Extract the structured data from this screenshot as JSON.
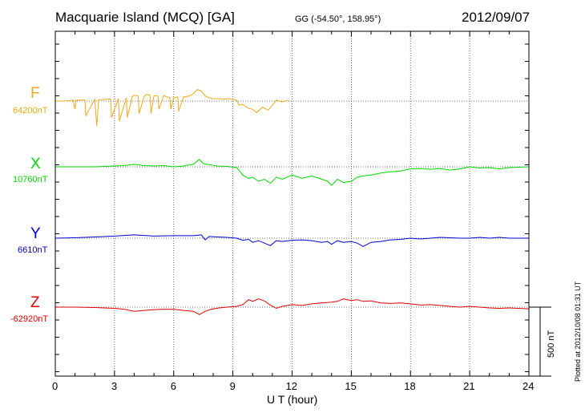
{
  "header": {
    "station": "Macquarie Island (MCQ)  [GA]",
    "coords": "GG (-54.50°, 158.95°)",
    "date": "2012/09/07"
  },
  "footer": {
    "plotted": "Plotted at 2012/10/08 01:31 UT",
    "scale_label": "500 nT"
  },
  "chart_data": {
    "type": "line",
    "title": "Macquarie Island (MCQ)  [GA]",
    "xlabel": "U T (hour)",
    "ylabel": "",
    "xlim": [
      0,
      24
    ],
    "x_ticks": [
      "0",
      "3",
      "6",
      "9",
      "12",
      "15",
      "18",
      "21",
      "24"
    ],
    "grid": true,
    "scale_bar_nT": 500,
    "series": [
      {
        "name": "F",
        "baseline_label": "64200nT",
        "color": "#f0a818",
        "x": [
          0,
          0.5,
          0.9,
          1.0,
          1.05,
          1.5,
          1.55,
          2.0,
          2.1,
          2.2,
          2.5,
          2.8,
          2.85,
          3.2,
          3.25,
          3.6,
          3.65,
          3.9,
          4.0,
          4.2,
          4.25,
          4.5,
          4.6,
          4.8,
          4.85,
          5.0,
          5.2,
          5.25,
          5.5,
          5.6,
          5.8,
          5.85,
          6.0,
          6.2,
          6.25,
          6.5,
          6.8,
          7.0,
          7.2,
          7.4,
          7.6,
          7.8,
          8.0,
          8.2,
          8.5,
          8.8,
          9.0,
          9.2,
          9.3,
          9.5,
          9.8,
          10.0,
          10.2,
          10.5,
          10.8,
          11.0,
          11.2,
          11.5,
          11.8
        ],
        "values": [
          0,
          0,
          2,
          -20,
          2,
          3,
          -35,
          4,
          -60,
          3,
          4,
          5,
          -40,
          6,
          -48,
          8,
          -40,
          10,
          14,
          12,
          -30,
          11,
          16,
          14,
          -30,
          13,
          12,
          -20,
          14,
          10,
          9,
          -20,
          8,
          10,
          -25,
          10,
          12,
          18,
          28,
          24,
          12,
          8,
          5,
          6,
          4,
          6,
          4,
          2,
          -10,
          -8,
          -18,
          -20,
          -28,
          -15,
          -22,
          -10,
          2,
          -2,
          2
        ]
      },
      {
        "name": "X",
        "baseline_label": "10760nT",
        "color": "#00d800",
        "x": [
          0,
          1,
          2,
          3,
          3.5,
          4.0,
          4.5,
          5.0,
          5.5,
          6.0,
          6.5,
          7.0,
          7.3,
          7.5,
          7.8,
          8.2,
          8.7,
          9.2,
          9.5,
          9.8,
          10.0,
          10.3,
          10.6,
          10.9,
          11.2,
          11.5,
          12.0,
          12.5,
          13.0,
          13.5,
          13.8,
          14.0,
          14.3,
          14.6,
          15.0,
          15.3,
          15.6,
          16.0,
          16.5,
          17.0,
          17.5,
          18.0,
          18.5,
          19.0,
          19.5,
          20.0,
          20.5,
          21.0,
          21.5,
          22.0,
          22.5,
          23.0,
          24.0
        ],
        "values": [
          0,
          0,
          0,
          2,
          3,
          6,
          3,
          2,
          3,
          0,
          2,
          6,
          18,
          8,
          5,
          2,
          1,
          -2,
          -20,
          -28,
          -25,
          -35,
          -30,
          -40,
          -25,
          -30,
          -20,
          -28,
          -22,
          -30,
          -35,
          -45,
          -30,
          -38,
          -35,
          -25,
          -22,
          -20,
          -15,
          -12,
          -10,
          -5,
          -4,
          -6,
          -4,
          -8,
          -5,
          0,
          -3,
          -2,
          -5,
          -2,
          0
        ]
      },
      {
        "name": "Y",
        "baseline_label": "6610nT",
        "color": "#0000d0",
        "x": [
          0,
          1,
          2,
          3,
          4,
          5,
          6,
          7,
          7.4,
          7.6,
          7.8,
          8.2,
          8.7,
          9.2,
          9.5,
          9.8,
          10.0,
          10.3,
          10.6,
          10.9,
          11.2,
          11.5,
          12.0,
          12.5,
          13.0,
          13.5,
          13.8,
          14.0,
          14.3,
          14.6,
          15.0,
          15.3,
          15.6,
          16.0,
          16.5,
          17.0,
          17.5,
          18.0,
          18.5,
          19.0,
          19.5,
          20.0,
          20.5,
          21.0,
          21.5,
          22.0,
          22.5,
          23.0,
          24.0
        ],
        "values": [
          0,
          1,
          3,
          5,
          8,
          5,
          6,
          6,
          8,
          -4,
          4,
          3,
          2,
          0,
          -5,
          -3,
          -10,
          -6,
          -12,
          -18,
          -6,
          -8,
          -5,
          -4,
          -6,
          -10,
          -8,
          -15,
          -6,
          -10,
          -8,
          -12,
          -20,
          -10,
          -8,
          -4,
          -3,
          0,
          -2,
          0,
          2,
          1,
          0,
          0,
          2,
          0,
          2,
          0,
          0
        ]
      },
      {
        "name": "Z",
        "baseline_label": "-62920nT",
        "color": "#e00000",
        "x": [
          0,
          1,
          2,
          3,
          3.5,
          4.0,
          4.5,
          5.0,
          5.5,
          6.0,
          6.5,
          7.0,
          7.3,
          7.6,
          7.9,
          8.3,
          8.7,
          9.2,
          9.5,
          9.8,
          10.0,
          10.3,
          10.6,
          10.9,
          11.2,
          11.5,
          12.0,
          12.5,
          13.0,
          13.5,
          14.0,
          14.3,
          14.6,
          15.0,
          15.3,
          15.6,
          16.0,
          16.5,
          17.0,
          17.5,
          18.0,
          18.5,
          19.0,
          19.5,
          20.0,
          20.5,
          21.0,
          21.5,
          22.0,
          22.5,
          23.0,
          24.0
        ],
        "values": [
          0,
          0,
          -1,
          -3,
          -5,
          -10,
          -8,
          -6,
          -5,
          -5,
          -8,
          -10,
          -18,
          -10,
          -5,
          -2,
          0,
          2,
          6,
          18,
          14,
          20,
          15,
          5,
          -3,
          2,
          6,
          4,
          8,
          10,
          12,
          14,
          20,
          16,
          18,
          14,
          15,
          10,
          9,
          10,
          8,
          5,
          6,
          4,
          2,
          0,
          2,
          0,
          -2,
          -3,
          -2,
          -4
        ]
      }
    ]
  }
}
